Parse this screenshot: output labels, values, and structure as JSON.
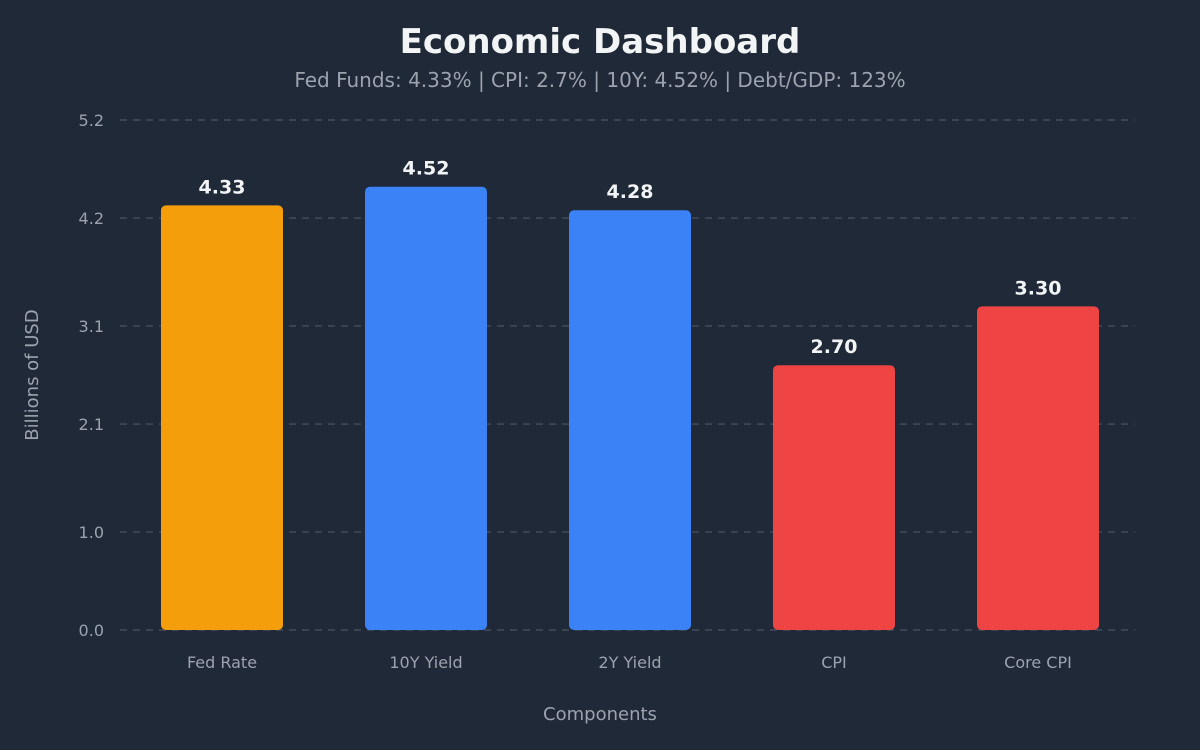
{
  "chart_data": {
    "type": "bar",
    "title": "Economic Dashboard",
    "subtitle": "Fed Funds: 4.33% | CPI: 2.7% | 10Y: 4.52% | Debt/GDP: 123%",
    "xlabel": "Components",
    "ylabel": "Billions of USD",
    "categories": [
      "Fed Rate",
      "10Y Yield",
      "2Y Yield",
      "CPI",
      "Core CPI"
    ],
    "values": [
      4.33,
      4.52,
      4.28,
      2.7,
      3.3
    ],
    "value_labels": [
      "4.33",
      "4.52",
      "4.28",
      "2.70",
      "3.30"
    ],
    "bar_colors": [
      "#f59e0b",
      "#3b82f6",
      "#3b82f6",
      "#ef4444",
      "#ef4444"
    ],
    "yticks": [
      0.0,
      1.0,
      2.1,
      3.1,
      4.2,
      5.2
    ],
    "ytick_labels": [
      "0.0",
      "1.0",
      "2.1",
      "3.1",
      "4.2",
      "5.2"
    ],
    "ylim": [
      0,
      5.2
    ],
    "grid": true,
    "legend": "none",
    "colors": {
      "background": "#1f2937",
      "text": "#f3f4f6",
      "muted_text": "#9ca3af",
      "grid": "#4b5563"
    }
  }
}
